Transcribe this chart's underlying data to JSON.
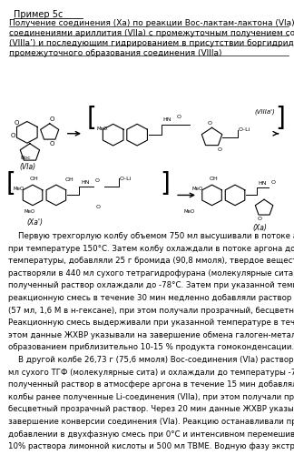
{
  "title": "Пример 5с",
  "subtitle_lines": [
    "Получение соединения (Xa) по реакции Boc-лактам-лактона (VIa) с",
    "соединениями ариллития (VIIa) с промежуточным получением соединения",
    "(VIIIa’) и последующим гидрированием в присутствии боргидрида натрия без",
    "промежуточного образования соединения (VIIIa)"
  ],
  "body_text": [
    "    Первую трехгорлую колбу объемом 750 мл высушивали в потоке аргона",
    "при температуре 150°C. Затем колбу охлаждали в потоке аргона до комнатной",
    "температуры, добавляли 25 г бромида (90,8 ммоля), твердое вещество",
    "растворяли в 440 мл сухого тетрагидрофурана (молекулярные сита) и",
    "полученный раствор охлаждали до -78°C. Затем при указанной температуре в",
    "реакционную смесь в течение 30 мин медленно добавляли раствор н-бутиллития",
    "(57 мл, 1,6 М в н-гексане), при этом получали прозрачный, бесцветный раствор.",
    "Реакционную смесь выдерживали при указанной температуре в течение 1 ч, при",
    "этом данные ЖХВР указывали на завершение обмена галоген-металл с",
    "образованием приблизительно 10-15 % продукта гомоконденсации.",
    "    В другой колбе 26,73 г (75,6 ммоля) Boc-соединения (VIa) растворяли в 440",
    "мл сухого ТГФ (молекулярные сита) и охлаждали до температуры -70°C. В",
    "полученный раствор в атмосфере аргона в течение 15 мин добавляли из первой",
    "колбы ранее полученные Li-соединения (VIIa), при этом получали практически",
    "бесцветный прозрачный раствор. Через 20 мин данные ЖХВР указывали на",
    "завершение конверсии соединения (VIa). Реакцию останавливали при",
    "добавлении в двухфазную смесь при 0°C и интенсивном перемешивании 600 мл",
    "10% раствора лимонной кислоты и 500 мл TBME. Водную фазу экстрагировали"
  ],
  "bg_color": "#ffffff",
  "text_color": "#000000",
  "font_size": 6.2,
  "title_font_size": 7.0,
  "subtitle_font_size": 6.5
}
